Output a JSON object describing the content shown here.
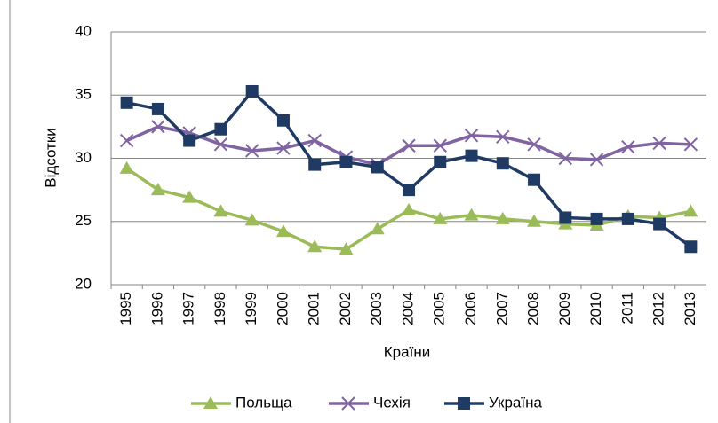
{
  "chart_data": {
    "type": "line",
    "y_label": "Відсотки",
    "x_label": "Країни",
    "categories": [
      "1995",
      "1996",
      "1997",
      "1998",
      "1999",
      "2000",
      "2001",
      "2002",
      "2003",
      "2004",
      "2005",
      "2006",
      "2007",
      "2008",
      "2009",
      "2010",
      "2011",
      "2012",
      "2013"
    ],
    "series": [
      {
        "name": "Польща",
        "color": "#9bbb59",
        "marker": "triangle",
        "values": [
          29.2,
          27.5,
          26.9,
          25.8,
          25.1,
          24.2,
          23.0,
          22.8,
          24.4,
          25.9,
          25.2,
          25.5,
          25.2,
          25.0,
          24.8,
          24.7,
          25.4,
          25.3,
          25.8
        ]
      },
      {
        "name": "Чехія",
        "color": "#8064a2",
        "marker": "x",
        "values": [
          31.4,
          32.5,
          32.0,
          31.1,
          30.6,
          30.8,
          31.4,
          30.1,
          29.5,
          31.0,
          31.0,
          31.8,
          31.7,
          31.1,
          30.0,
          29.9,
          30.9,
          31.2,
          31.1
        ]
      },
      {
        "name": "Україна",
        "color": "#1f3b64",
        "marker": "square",
        "values": [
          34.4,
          33.9,
          31.4,
          32.3,
          35.3,
          33.0,
          29.5,
          29.7,
          29.3,
          27.5,
          29.7,
          30.2,
          29.6,
          28.3,
          25.3,
          25.2,
          25.2,
          24.8,
          23.0
        ]
      }
    ],
    "ylim": [
      20,
      40
    ],
    "yticks": [
      20,
      25,
      30,
      35,
      40
    ],
    "grid": true,
    "legend": "bottom"
  }
}
